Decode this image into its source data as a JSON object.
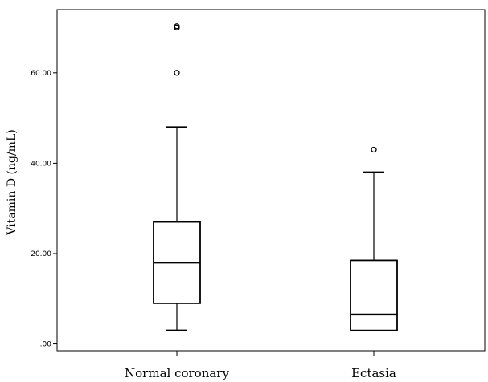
{
  "chart_data": {
    "type": "boxplot",
    "ylabel": "Vitamin D (ng/mL)",
    "xlabel": "",
    "ylim": [
      -1.5,
      74
    ],
    "yticks": [
      0,
      20,
      40,
      60
    ],
    "ytick_labels": [
      ".00",
      "20.00",
      "40.00",
      "60.00"
    ],
    "grid": false,
    "categories": [
      "Normal coronary",
      "Ectasia"
    ],
    "boxes": [
      {
        "category": "Normal coronary",
        "whisker_low": 3,
        "q1": 9,
        "median": 18,
        "q3": 27,
        "whisker_high": 48,
        "outliers": [
          60,
          70,
          70.3
        ]
      },
      {
        "category": "Ectasia",
        "whisker_low": 3,
        "q1": 3,
        "median": 6.5,
        "q3": 18.5,
        "whisker_high": 38,
        "outliers": [
          43
        ]
      }
    ],
    "colors": {
      "box_fill": "#ffffff",
      "line": "#000000"
    }
  }
}
